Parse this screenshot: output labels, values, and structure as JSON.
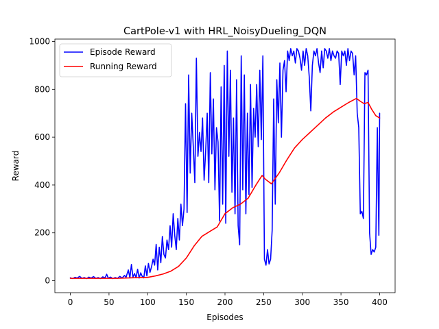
{
  "chart_data": {
    "type": "line",
    "title": "CartPole-v1 with HRL_NoisyDueling_DQN",
    "xlabel": "Episodes",
    "ylabel": "Reward",
    "xlim": [
      -20,
      420
    ],
    "ylim": [
      -50,
      1010
    ],
    "xticks": [
      0,
      50,
      100,
      150,
      200,
      250,
      300,
      350,
      400
    ],
    "yticks": [
      0,
      200,
      400,
      600,
      800,
      1000
    ],
    "grid": false,
    "legend": "upper-left",
    "series": [
      {
        "name": "Episode Reward",
        "color": "#0000ff",
        "points": [
          [
            0,
            12
          ],
          [
            3,
            9
          ],
          [
            6,
            14
          ],
          [
            9,
            11
          ],
          [
            12,
            18
          ],
          [
            15,
            10
          ],
          [
            18,
            13
          ],
          [
            21,
            9
          ],
          [
            24,
            15
          ],
          [
            27,
            11
          ],
          [
            30,
            17
          ],
          [
            33,
            10
          ],
          [
            36,
            13
          ],
          [
            39,
            9
          ],
          [
            42,
            16
          ],
          [
            45,
            12
          ],
          [
            47,
            27
          ],
          [
            49,
            11
          ],
          [
            52,
            15
          ],
          [
            55,
            9
          ],
          [
            58,
            13
          ],
          [
            61,
            10
          ],
          [
            64,
            18
          ],
          [
            67,
            11
          ],
          [
            70,
            22
          ],
          [
            72,
            14
          ],
          [
            75,
            45
          ],
          [
            77,
            12
          ],
          [
            79,
            68
          ],
          [
            81,
            15
          ],
          [
            83,
            30
          ],
          [
            85,
            12
          ],
          [
            87,
            48
          ],
          [
            89,
            11
          ],
          [
            91,
            33
          ],
          [
            93,
            18
          ],
          [
            95,
            12
          ],
          [
            97,
            62
          ],
          [
            99,
            20
          ],
          [
            101,
            72
          ],
          [
            103,
            35
          ],
          [
            105,
            58
          ],
          [
            107,
            90
          ],
          [
            109,
            65
          ],
          [
            111,
            152
          ],
          [
            113,
            45
          ],
          [
            115,
            140
          ],
          [
            117,
            75
          ],
          [
            119,
            185
          ],
          [
            121,
            110
          ],
          [
            123,
            95
          ],
          [
            125,
            170
          ],
          [
            127,
            130
          ],
          [
            129,
            230
          ],
          [
            131,
            140
          ],
          [
            133,
            280
          ],
          [
            135,
            190
          ],
          [
            137,
            130
          ],
          [
            139,
            260
          ],
          [
            141,
            170
          ],
          [
            143,
            320
          ],
          [
            145,
            230
          ],
          [
            147,
            300
          ],
          [
            149,
            740
          ],
          [
            151,
            285
          ],
          [
            153,
            860
          ],
          [
            155,
            450
          ],
          [
            157,
            700
          ],
          [
            159,
            560
          ],
          [
            161,
            410
          ],
          [
            163,
            930
          ],
          [
            165,
            520
          ],
          [
            167,
            620
          ],
          [
            169,
            540
          ],
          [
            171,
            680
          ],
          [
            173,
            420
          ],
          [
            175,
            540
          ],
          [
            177,
            700
          ],
          [
            179,
            410
          ],
          [
            181,
            870
          ],
          [
            183,
            530
          ],
          [
            185,
            760
          ],
          [
            187,
            380
          ],
          [
            189,
            640
          ],
          [
            191,
            580
          ],
          [
            193,
            250
          ],
          [
            195,
            810
          ],
          [
            197,
            320
          ],
          [
            199,
            900
          ],
          [
            201,
            240
          ],
          [
            203,
            960
          ],
          [
            205,
            520
          ],
          [
            207,
            880
          ],
          [
            209,
            370
          ],
          [
            211,
            680
          ],
          [
            213,
            280
          ],
          [
            215,
            840
          ],
          [
            217,
            230
          ],
          [
            219,
            150
          ],
          [
            221,
            940
          ],
          [
            223,
            380
          ],
          [
            225,
            860
          ],
          [
            227,
            280
          ],
          [
            229,
            700
          ],
          [
            231,
            360
          ],
          [
            233,
            820
          ],
          [
            235,
            390
          ],
          [
            237,
            720
          ],
          [
            239,
            600
          ],
          [
            241,
            820
          ],
          [
            243,
            560
          ],
          [
            245,
            880
          ],
          [
            247,
            590
          ],
          [
            249,
            940
          ],
          [
            251,
            90
          ],
          [
            253,
            65
          ],
          [
            255,
            130
          ],
          [
            257,
            70
          ],
          [
            259,
            90
          ],
          [
            261,
            210
          ],
          [
            263,
            760
          ],
          [
            265,
            320
          ],
          [
            267,
            840
          ],
          [
            269,
            660
          ],
          [
            271,
            910
          ],
          [
            273,
            600
          ],
          [
            275,
            880
          ],
          [
            277,
            920
          ],
          [
            279,
            790
          ],
          [
            281,
            960
          ],
          [
            283,
            920
          ],
          [
            285,
            970
          ],
          [
            287,
            940
          ],
          [
            289,
            960
          ],
          [
            291,
            910
          ],
          [
            293,
            970
          ],
          [
            295,
            960
          ],
          [
            297,
            930
          ],
          [
            299,
            880
          ],
          [
            301,
            960
          ],
          [
            303,
            900
          ],
          [
            305,
            970
          ],
          [
            307,
            940
          ],
          [
            309,
            850
          ],
          [
            311,
            710
          ],
          [
            313,
            900
          ],
          [
            315,
            960
          ],
          [
            317,
            940
          ],
          [
            319,
            970
          ],
          [
            321,
            910
          ],
          [
            323,
            870
          ],
          [
            325,
            960
          ],
          [
            327,
            890
          ],
          [
            329,
            970
          ],
          [
            331,
            960
          ],
          [
            333,
            930
          ],
          [
            335,
            970
          ],
          [
            337,
            920
          ],
          [
            339,
            960
          ],
          [
            341,
            940
          ],
          [
            343,
            930
          ],
          [
            345,
            960
          ],
          [
            347,
            950
          ],
          [
            349,
            820
          ],
          [
            351,
            960
          ],
          [
            353,
            940
          ],
          [
            355,
            960
          ],
          [
            357,
            900
          ],
          [
            359,
            970
          ],
          [
            361,
            920
          ],
          [
            363,
            960
          ],
          [
            365,
            950
          ],
          [
            367,
            860
          ],
          [
            369,
            940
          ],
          [
            371,
            700
          ],
          [
            373,
            640
          ],
          [
            375,
            280
          ],
          [
            377,
            290
          ],
          [
            379,
            260
          ],
          [
            381,
            870
          ],
          [
            383,
            860
          ],
          [
            385,
            880
          ],
          [
            387,
            200
          ],
          [
            389,
            110
          ],
          [
            391,
            130
          ],
          [
            393,
            120
          ],
          [
            395,
            140
          ],
          [
            397,
            640
          ],
          [
            399,
            190
          ],
          [
            400,
            700
          ]
        ]
      },
      {
        "name": "Running Reward",
        "color": "#ff0000",
        "points": [
          [
            0,
            10
          ],
          [
            20,
            10
          ],
          [
            40,
            10
          ],
          [
            60,
            10
          ],
          [
            80,
            12
          ],
          [
            100,
            14
          ],
          [
            110,
            20
          ],
          [
            120,
            28
          ],
          [
            130,
            40
          ],
          [
            140,
            60
          ],
          [
            150,
            95
          ],
          [
            155,
            120
          ],
          [
            160,
            145
          ],
          [
            170,
            185
          ],
          [
            180,
            205
          ],
          [
            190,
            225
          ],
          [
            200,
            280
          ],
          [
            210,
            305
          ],
          [
            220,
            320
          ],
          [
            230,
            345
          ],
          [
            240,
            400
          ],
          [
            248,
            440
          ],
          [
            252,
            425
          ],
          [
            260,
            405
          ],
          [
            270,
            450
          ],
          [
            280,
            505
          ],
          [
            290,
            555
          ],
          [
            300,
            590
          ],
          [
            310,
            620
          ],
          [
            320,
            650
          ],
          [
            330,
            680
          ],
          [
            340,
            705
          ],
          [
            350,
            725
          ],
          [
            360,
            745
          ],
          [
            370,
            762
          ],
          [
            375,
            750
          ],
          [
            380,
            740
          ],
          [
            385,
            745
          ],
          [
            390,
            715
          ],
          [
            395,
            690
          ],
          [
            400,
            680
          ]
        ]
      }
    ]
  }
}
